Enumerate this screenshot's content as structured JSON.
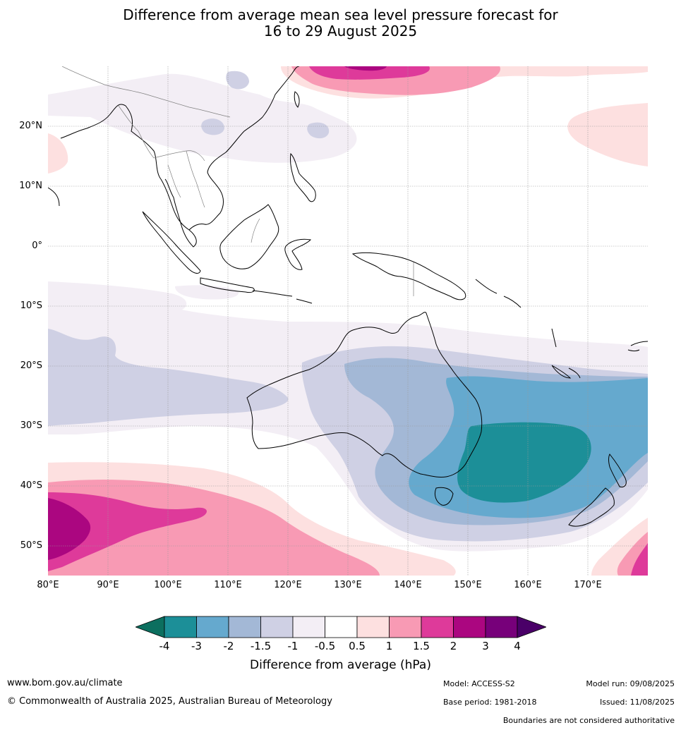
{
  "title": {
    "line1": "Difference from average mean sea level pressure forecast for",
    "line2": "16 to 29 August 2025"
  },
  "map": {
    "lat_labels": [
      "20°N",
      "10°N",
      "0°",
      "10°S",
      "20°S",
      "30°S",
      "40°S",
      "50°S"
    ],
    "lon_labels": [
      "80°E",
      "90°E",
      "100°E",
      "110°E",
      "120°E",
      "130°E",
      "140°E",
      "150°E",
      "160°E",
      "170°E"
    ],
    "extent": {
      "lon_min": 80,
      "lon_max": 180,
      "lat_min": -55,
      "lat_max": 30
    }
  },
  "legend": {
    "ticks": [
      "-4",
      "-3",
      "-2",
      "-1.5",
      "-1",
      "-0.5",
      "0.5",
      "1",
      "1.5",
      "2",
      "3",
      "4"
    ],
    "title": "Difference from average (hPa)",
    "colors": {
      "below_-4": "#0c6f5f",
      "-4_-3": "#1c8f98",
      "-3_-2": "#65a9ce",
      "-2_-1.5": "#a3b8d6",
      "-1.5_-1": "#cfd0e4",
      "-1_-0.5": "#f3eef5",
      "-0.5_0.5": "#ffffff",
      "0.5_1": "#fde0e0",
      "1_1.5": "#f89ab4",
      "1.5_2": "#de3a9a",
      "2_3": "#ab0680",
      "3_4": "#77007a",
      "above_4": "#4a0068"
    }
  },
  "footer": {
    "website": "www.bom.gov.au/climate",
    "copyright": "© Commonwealth of Australia 2025, Australian Bureau of Meteorology",
    "model": "Model: ACCESS-S2",
    "base_period": "Base period: 1981-2018",
    "model_run": "Model run: 09/08/2025",
    "issued": "Issued: 11/08/2025",
    "disclaimer": "Boundaries are not considered authoritative"
  }
}
